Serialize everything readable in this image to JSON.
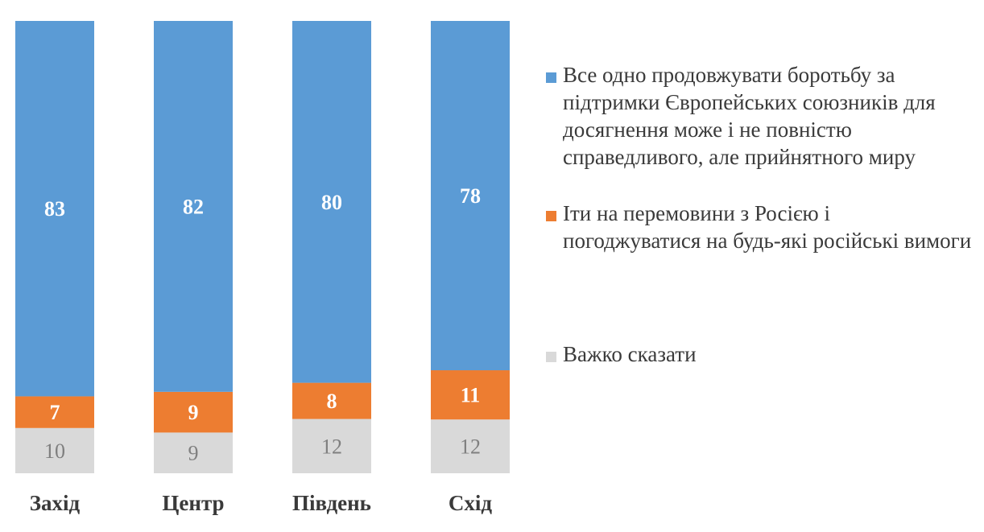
{
  "colors": {
    "series": [
      "#5b9bd5",
      "#ed7d31",
      "#d9d9d9"
    ],
    "label_light": "#ffffff",
    "label_dark": "#7f7f7f",
    "axis_label": "#3a3a3a"
  },
  "chart_data": {
    "type": "bar",
    "stacked": true,
    "categories": [
      "Захід",
      "Центр",
      "Південь",
      "Схід"
    ],
    "series": [
      {
        "name": "Все одно продовжувати боротьбу за підтримки Європейських союзників для досягнення може і не повністю справедливого, але прийнятного миру",
        "values": [
          83,
          82,
          80,
          78
        ]
      },
      {
        "name": "Іти на перемовини з Росією і погоджуватися на будь-які російські вимоги",
        "values": [
          7,
          9,
          8,
          11
        ]
      },
      {
        "name": "Важко сказати",
        "values": [
          10,
          9,
          12,
          12
        ]
      }
    ],
    "ylim": [
      0,
      100
    ],
    "grid": false,
    "legend": "right"
  }
}
